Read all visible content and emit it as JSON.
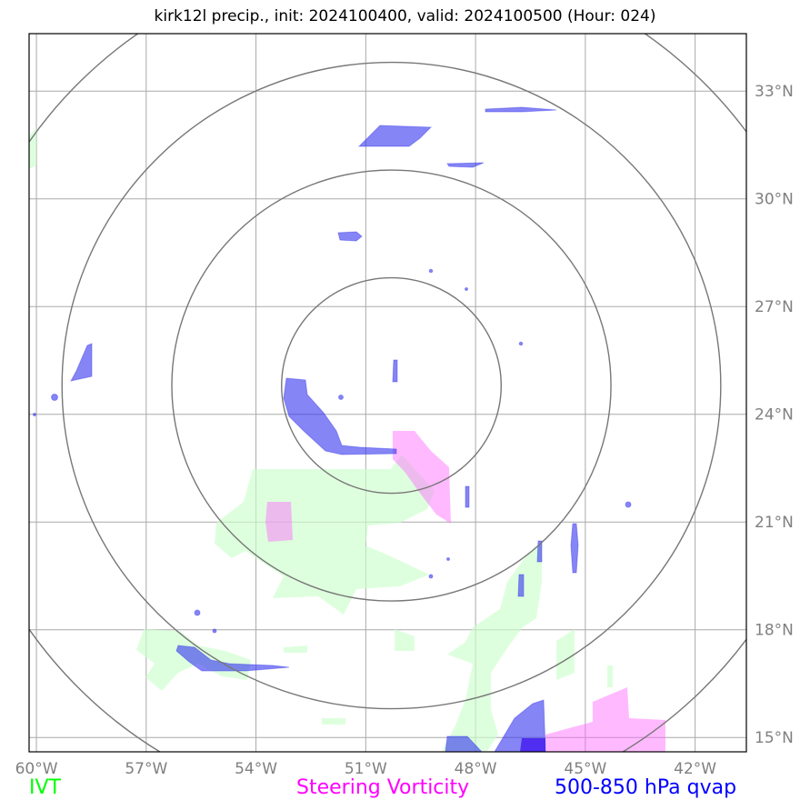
{
  "title": "kirk12l precip., init: 2024100400, valid: 2024100500 (Hour: 024)",
  "map": {
    "lon_range": [
      -60.2,
      -40.6
    ],
    "lat_range": [
      14.6,
      34.6
    ],
    "lon_ticks": [
      {
        "value": -60,
        "label": "60°W"
      },
      {
        "value": -57,
        "label": "57°W"
      },
      {
        "value": -54,
        "label": "54°W"
      },
      {
        "value": -51,
        "label": "51°W"
      },
      {
        "value": -48,
        "label": "48°W"
      },
      {
        "value": -45,
        "label": "45°W"
      },
      {
        "value": -42,
        "label": "42°W"
      }
    ],
    "lat_ticks": [
      {
        "value": 15,
        "label": "15°N"
      },
      {
        "value": 18,
        "label": "18°N"
      },
      {
        "value": 21,
        "label": "21°N"
      },
      {
        "value": 24,
        "label": "24°N"
      },
      {
        "value": 27,
        "label": "27°N"
      },
      {
        "value": 30,
        "label": "30°N"
      },
      {
        "value": 33,
        "label": "33°N"
      }
    ],
    "range_rings": {
      "center": {
        "lon": -50.3,
        "lat": 24.8
      },
      "radii_deg": [
        3,
        6,
        9,
        12
      ]
    },
    "colors": {
      "ivt": "#00ff00",
      "vorticity": "#ff00ff",
      "qvap": "#0000ff",
      "grid": "#aaaaaa",
      "rings": "#777777"
    }
  },
  "legend": {
    "ivt": "IVT",
    "vorticity": "Steering Vorticity",
    "qvap": "500-850 hPa qvap"
  }
}
